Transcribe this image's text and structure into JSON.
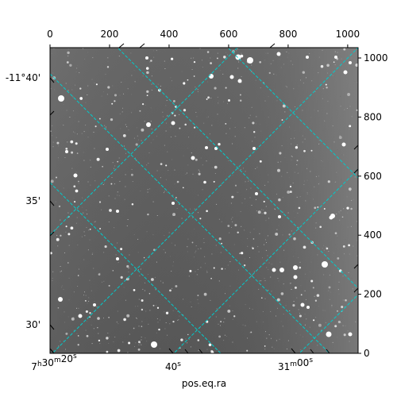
{
  "chart_data": {
    "type": "image",
    "colormap": "gray",
    "grid": true,
    "grid_color": "#00cccc",
    "xlabel": "pos.eq.ra",
    "ylabel": "",
    "pixel_axes": {
      "top_ticks": [
        "0",
        "200",
        "400",
        "600",
        "800",
        "1000"
      ],
      "top_values": [
        0,
        200,
        400,
        600,
        800,
        1000
      ],
      "right_ticks": [
        "0",
        "200",
        "400",
        "600",
        "800",
        "1000"
      ],
      "right_values": [
        0,
        200,
        400,
        600,
        800,
        1000
      ],
      "xlim": [
        0,
        1035
      ],
      "ylim": [
        0,
        1035
      ]
    },
    "world_axes": {
      "ra_ticks": [
        {
          "h": "7",
          "hu": "h",
          "m": "30",
          "mu": "m",
          "s": "20",
          "su": "s",
          "value": "7h30m20s"
        },
        {
          "s": "40",
          "su": "s",
          "value": "7h30m40s"
        },
        {
          "m": "31",
          "mu": "m",
          "s": "00",
          "su": "s",
          "value": "7h31m00s"
        }
      ],
      "dec_ticks": [
        "-11°40'",
        "35'",
        "30'"
      ],
      "dec_values": [
        "-11°40'",
        "-11°35'",
        "-11°30'"
      ]
    }
  }
}
